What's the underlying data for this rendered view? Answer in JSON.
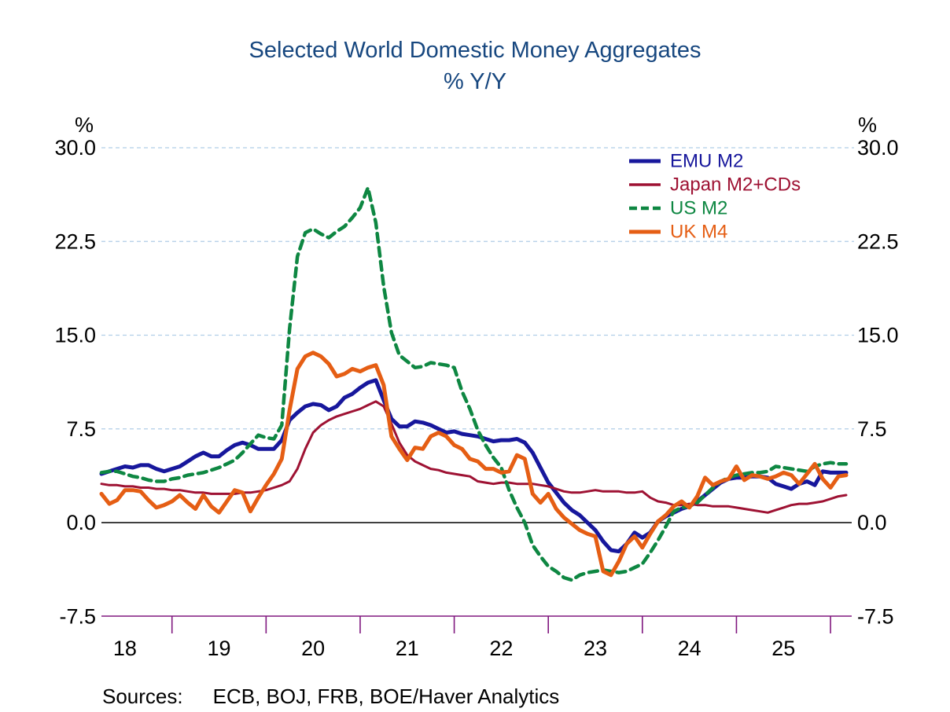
{
  "title": {
    "line1": "Selected World Domestic Money Aggregates",
    "line2": "%  Y/Y"
  },
  "sources": {
    "label": "Sources:",
    "text": "ECB, BOJ, FRB, BOE/Haver Analytics"
  },
  "colors": {
    "title": "#17477f",
    "gridline": "#b0cde8",
    "zero_line": "#000000",
    "x_axis": "#80187f",
    "axis_text": "#000000",
    "emu_m2": "#17179c",
    "japan_m2_cds": "#9e1233",
    "us_m2": "#0e8742",
    "uk_m4": "#e55e14"
  },
  "chart_data": {
    "type": "line",
    "frequency": "monthly",
    "x_note": "monthly observations, years 2018 through 2025",
    "ylim": [
      -7.5,
      30.0
    ],
    "grid": "horizontal dashed at 7.5 intervals",
    "legend_position": "top-right inside plot",
    "y_axis_percent_symbol": "%",
    "y_ticks": [
      {
        "value": 30.0,
        "label": "30.0"
      },
      {
        "value": 22.5,
        "label": "22.5"
      },
      {
        "value": 15.0,
        "label": "15.0"
      },
      {
        "value": 7.5,
        "label": "7.5"
      },
      {
        "value": 0.0,
        "label": "0.0"
      },
      {
        "value": -7.5,
        "label": "-7.5"
      }
    ],
    "y_gridline_values": [
      30.0,
      22.5,
      15.0,
      7.5
    ],
    "x_year_labels": [
      "18",
      "19",
      "20",
      "21",
      "22",
      "23",
      "24",
      "25"
    ],
    "x_label_indices": [
      3,
      15,
      27,
      39,
      51,
      63,
      75,
      87
    ],
    "x_tick_indices": [
      9,
      21,
      33,
      45,
      57,
      69,
      81,
      93
    ],
    "series": [
      {
        "name": "EMU M2",
        "color": "#17179c",
        "dashed": false,
        "width": 5,
        "values": [
          3.9,
          4.1,
          4.3,
          4.5,
          4.4,
          4.6,
          4.6,
          4.3,
          4.1,
          4.3,
          4.5,
          4.9,
          5.3,
          5.6,
          5.3,
          5.3,
          5.8,
          6.2,
          6.4,
          6.2,
          5.9,
          5.9,
          5.9,
          6.6,
          8.2,
          8.8,
          9.3,
          9.5,
          9.4,
          9.0,
          9.3,
          10.0,
          10.3,
          10.8,
          11.2,
          11.4,
          9.8,
          8.3,
          7.7,
          7.7,
          8.1,
          8.0,
          7.8,
          7.5,
          7.2,
          7.3,
          7.1,
          7.0,
          6.9,
          6.7,
          6.5,
          6.6,
          6.6,
          6.7,
          6.4,
          5.6,
          4.4,
          3.2,
          2.4,
          1.6,
          1.0,
          0.6,
          0.0,
          -0.6,
          -1.5,
          -2.2,
          -2.3,
          -1.7,
          -0.8,
          -1.2,
          -0.8,
          0.1,
          0.5,
          0.8,
          1.1,
          1.3,
          1.7,
          2.2,
          2.7,
          3.2,
          3.5,
          3.6,
          3.6,
          3.7,
          3.7,
          3.6,
          3.1,
          2.9,
          2.7,
          3.1,
          3.3,
          3.0,
          4.1,
          4.0,
          4.0,
          4.0
        ]
      },
      {
        "name": "Japan M2+CDs",
        "color": "#9e1233",
        "dashed": false,
        "width": 3,
        "values": [
          3.1,
          3.0,
          3.0,
          2.9,
          2.9,
          2.8,
          2.8,
          2.7,
          2.7,
          2.6,
          2.6,
          2.5,
          2.4,
          2.4,
          2.3,
          2.3,
          2.3,
          2.3,
          2.4,
          2.4,
          2.5,
          2.6,
          2.8,
          3.0,
          3.3,
          4.3,
          5.9,
          7.2,
          7.8,
          8.2,
          8.5,
          8.7,
          8.9,
          9.1,
          9.4,
          9.7,
          9.3,
          7.9,
          6.4,
          5.4,
          4.9,
          4.6,
          4.3,
          4.2,
          4.0,
          3.9,
          3.8,
          3.7,
          3.3,
          3.2,
          3.1,
          3.2,
          3.2,
          3.1,
          3.1,
          3.1,
          3.0,
          2.9,
          2.7,
          2.5,
          2.4,
          2.4,
          2.5,
          2.6,
          2.5,
          2.5,
          2.5,
          2.4,
          2.4,
          2.5,
          2.0,
          1.7,
          1.6,
          1.4,
          1.4,
          1.5,
          1.4,
          1.4,
          1.3,
          1.3,
          1.3,
          1.2,
          1.1,
          1.0,
          0.9,
          0.8,
          1.0,
          1.2,
          1.4,
          1.5,
          1.5,
          1.6,
          1.7,
          1.9,
          2.1,
          2.2
        ]
      },
      {
        "name": "US M2",
        "color": "#0e8742",
        "dashed": true,
        "width": 4.5,
        "values": [
          4.0,
          4.1,
          4.1,
          3.9,
          3.7,
          3.6,
          3.4,
          3.3,
          3.3,
          3.5,
          3.6,
          3.8,
          3.9,
          4.0,
          4.2,
          4.4,
          4.7,
          5.0,
          5.6,
          6.3,
          7.0,
          6.8,
          6.7,
          7.8,
          15.5,
          21.3,
          23.2,
          23.5,
          23.1,
          22.8,
          23.3,
          23.7,
          24.4,
          25.2,
          26.8,
          24.0,
          18.9,
          15.2,
          13.4,
          12.9,
          12.4,
          12.5,
          12.8,
          12.7,
          12.6,
          12.4,
          10.5,
          9.1,
          7.4,
          6.2,
          5.2,
          4.4,
          2.6,
          1.2,
          0.0,
          -1.8,
          -2.7,
          -3.5,
          -3.9,
          -4.4,
          -4.6,
          -4.2,
          -4.0,
          -3.9,
          -3.8,
          -3.9,
          -4.0,
          -3.9,
          -3.6,
          -3.3,
          -2.4,
          -1.4,
          -0.3,
          0.9,
          1.2,
          1.3,
          1.6,
          2.2,
          2.8,
          3.3,
          3.6,
          3.8,
          3.9,
          4.0,
          4.0,
          4.1,
          4.5,
          4.4,
          4.3,
          4.2,
          4.1,
          4.5,
          4.7,
          4.8,
          4.7,
          4.7
        ]
      },
      {
        "name": "UK M4",
        "color": "#e55e14",
        "dashed": false,
        "width": 5,
        "values": [
          2.3,
          1.5,
          1.8,
          2.6,
          2.6,
          2.5,
          1.8,
          1.2,
          1.4,
          1.7,
          2.2,
          1.6,
          1.1,
          2.2,
          1.3,
          0.8,
          1.7,
          2.6,
          2.4,
          0.9,
          2.0,
          3.0,
          3.9,
          5.1,
          9.0,
          12.3,
          13.3,
          13.6,
          13.3,
          12.7,
          11.7,
          11.9,
          12.3,
          12.1,
          12.4,
          12.6,
          11.0,
          6.9,
          5.9,
          5.0,
          6.0,
          5.9,
          6.9,
          7.2,
          6.9,
          6.2,
          5.9,
          5.1,
          4.9,
          4.3,
          4.3,
          4.0,
          4.1,
          5.4,
          5.1,
          2.3,
          1.6,
          2.3,
          1.1,
          0.4,
          -0.1,
          -0.6,
          -0.9,
          -1.1,
          -3.9,
          -4.2,
          -3.1,
          -1.7,
          -1.1,
          -2.0,
          -0.9,
          0.1,
          0.6,
          1.3,
          1.7,
          1.2,
          2.1,
          3.6,
          3.0,
          3.3,
          3.5,
          4.5,
          3.4,
          3.8,
          3.7,
          3.5,
          3.7,
          4.0,
          3.8,
          3.1,
          3.9,
          4.7,
          3.5,
          2.8,
          3.7,
          3.8
        ]
      }
    ]
  }
}
